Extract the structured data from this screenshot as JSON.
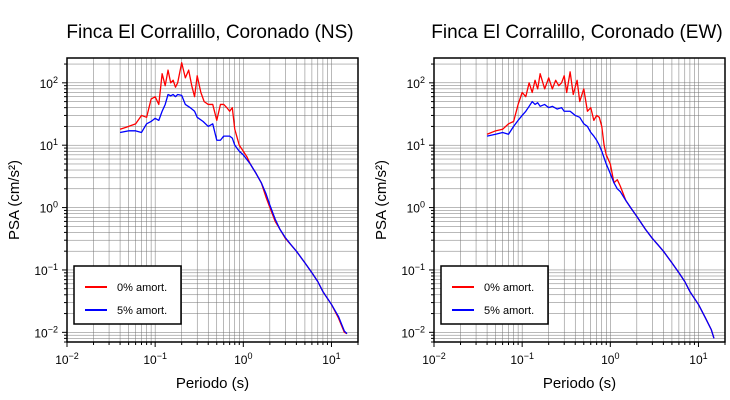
{
  "colors": {
    "series_0pct": "#ff0000",
    "series_5pct": "#0000ff",
    "grid": "#000000",
    "frame": "#000000"
  },
  "chart_data": [
    {
      "type": "line",
      "title": "Finca El Corralillo, Coronado (NS)",
      "xlabel": "Periodo (s)",
      "ylabel": "PSA (cm/s²)",
      "xscale": "log",
      "yscale": "log",
      "xlim": [
        0.01,
        20
      ],
      "ylim": [
        0.007,
        250
      ],
      "x_ticks": [
        0.01,
        0.1,
        1,
        10
      ],
      "x_tick_labels": [
        {
          "base": "10",
          "exp": "−2"
        },
        {
          "base": "10",
          "exp": "−1"
        },
        {
          "base": "10",
          "exp": "0"
        },
        {
          "base": "10",
          "exp": "1"
        }
      ],
      "y_ticks": [
        0.01,
        0.1,
        1,
        10,
        100
      ],
      "y_tick_labels": [
        {
          "base": "10",
          "exp": "−2"
        },
        {
          "base": "10",
          "exp": "−1"
        },
        {
          "base": "10",
          "exp": "0"
        },
        {
          "base": "10",
          "exp": "1"
        },
        {
          "base": "10",
          "exp": "2"
        }
      ],
      "grid": true,
      "legend_position": "bottom-left",
      "series": [
        {
          "name": "0% amort.",
          "color": "#ff0000",
          "points": [
            [
              0.04,
              18
            ],
            [
              0.05,
              20
            ],
            [
              0.06,
              22
            ],
            [
              0.07,
              30
            ],
            [
              0.08,
              28
            ],
            [
              0.09,
              55
            ],
            [
              0.1,
              60
            ],
            [
              0.11,
              45
            ],
            [
              0.12,
              140
            ],
            [
              0.13,
              90
            ],
            [
              0.14,
              160
            ],
            [
              0.15,
              100
            ],
            [
              0.16,
              110
            ],
            [
              0.17,
              85
            ],
            [
              0.18,
              100
            ],
            [
              0.2,
              210
            ],
            [
              0.22,
              120
            ],
            [
              0.24,
              160
            ],
            [
              0.26,
              90
            ],
            [
              0.28,
              60
            ],
            [
              0.3,
              130
            ],
            [
              0.33,
              70
            ],
            [
              0.36,
              50
            ],
            [
              0.4,
              45
            ],
            [
              0.45,
              45
            ],
            [
              0.5,
              25
            ],
            [
              0.55,
              45
            ],
            [
              0.6,
              45
            ],
            [
              0.65,
              40
            ],
            [
              0.7,
              35
            ],
            [
              0.75,
              40
            ],
            [
              0.8,
              18
            ],
            [
              0.9,
              10
            ],
            [
              1.0,
              8
            ],
            [
              1.1,
              6.5
            ],
            [
              1.2,
              5
            ],
            [
              1.4,
              3.5
            ],
            [
              1.6,
              2.5
            ],
            [
              1.8,
              1.5
            ],
            [
              2,
              1.0
            ],
            [
              2.3,
              0.6
            ],
            [
              2.6,
              0.45
            ],
            [
              3,
              0.32
            ],
            [
              3.5,
              0.25
            ],
            [
              4,
              0.2
            ],
            [
              5,
              0.13
            ],
            [
              6,
              0.09
            ],
            [
              7,
              0.065
            ],
            [
              8,
              0.045
            ],
            [
              10,
              0.028
            ],
            [
              12,
              0.017
            ],
            [
              14,
              0.01
            ],
            [
              15,
              0.0095
            ]
          ]
        },
        {
          "name": "5% amort.",
          "color": "#0000ff",
          "points": [
            [
              0.04,
              16
            ],
            [
              0.05,
              17
            ],
            [
              0.06,
              17
            ],
            [
              0.07,
              16
            ],
            [
              0.08,
              22
            ],
            [
              0.09,
              24
            ],
            [
              0.1,
              27
            ],
            [
              0.11,
              25
            ],
            [
              0.12,
              35
            ],
            [
              0.13,
              45
            ],
            [
              0.14,
              65
            ],
            [
              0.15,
              62
            ],
            [
              0.16,
              65
            ],
            [
              0.17,
              60
            ],
            [
              0.18,
              65
            ],
            [
              0.2,
              63
            ],
            [
              0.22,
              45
            ],
            [
              0.25,
              40
            ],
            [
              0.28,
              35
            ],
            [
              0.3,
              28
            ],
            [
              0.35,
              24
            ],
            [
              0.4,
              20
            ],
            [
              0.45,
              22
            ],
            [
              0.5,
              12
            ],
            [
              0.55,
              12
            ],
            [
              0.6,
              14
            ],
            [
              0.7,
              14
            ],
            [
              0.75,
              13
            ],
            [
              0.8,
              10
            ],
            [
              0.9,
              8
            ],
            [
              1.0,
              7
            ],
            [
              1.2,
              5
            ],
            [
              1.4,
              3.5
            ],
            [
              1.6,
              2.5
            ],
            [
              1.8,
              1.7
            ],
            [
              2,
              1.1
            ],
            [
              2.3,
              0.65
            ],
            [
              2.6,
              0.45
            ],
            [
              3,
              0.33
            ],
            [
              3.5,
              0.25
            ],
            [
              4,
              0.2
            ],
            [
              5,
              0.13
            ],
            [
              6,
              0.09
            ],
            [
              7,
              0.065
            ],
            [
              8,
              0.045
            ],
            [
              10,
              0.028
            ],
            [
              12,
              0.018
            ],
            [
              14,
              0.0105
            ],
            [
              15,
              0.0095
            ]
          ]
        }
      ]
    },
    {
      "type": "line",
      "title": "Finca El Corralillo, Coronado (EW)",
      "xlabel": "Periodo (s)",
      "ylabel": "PSA (cm/s²)",
      "xscale": "log",
      "yscale": "log",
      "xlim": [
        0.01,
        20
      ],
      "ylim": [
        0.007,
        250
      ],
      "x_ticks": [
        0.01,
        0.1,
        1,
        10
      ],
      "x_tick_labels": [
        {
          "base": "10",
          "exp": "−2"
        },
        {
          "base": "10",
          "exp": "−1"
        },
        {
          "base": "10",
          "exp": "0"
        },
        {
          "base": "10",
          "exp": "1"
        }
      ],
      "y_ticks": [
        0.01,
        0.1,
        1,
        10,
        100
      ],
      "y_tick_labels": [
        {
          "base": "10",
          "exp": "−2"
        },
        {
          "base": "10",
          "exp": "−1"
        },
        {
          "base": "10",
          "exp": "0"
        },
        {
          "base": "10",
          "exp": "1"
        },
        {
          "base": "10",
          "exp": "2"
        }
      ],
      "grid": true,
      "legend_position": "bottom-left",
      "series": [
        {
          "name": "0% amort.",
          "color": "#ff0000",
          "points": [
            [
              0.04,
              15
            ],
            [
              0.05,
              17
            ],
            [
              0.06,
              18
            ],
            [
              0.07,
              22
            ],
            [
              0.08,
              24
            ],
            [
              0.09,
              45
            ],
            [
              0.1,
              70
            ],
            [
              0.11,
              60
            ],
            [
              0.12,
              100
            ],
            [
              0.13,
              70
            ],
            [
              0.14,
              110
            ],
            [
              0.15,
              80
            ],
            [
              0.16,
              140
            ],
            [
              0.18,
              80
            ],
            [
              0.2,
              120
            ],
            [
              0.22,
              80
            ],
            [
              0.24,
              110
            ],
            [
              0.26,
              90
            ],
            [
              0.28,
              100
            ],
            [
              0.3,
              130
            ],
            [
              0.32,
              70
            ],
            [
              0.35,
              150
            ],
            [
              0.38,
              65
            ],
            [
              0.42,
              110
            ],
            [
              0.45,
              50
            ],
            [
              0.5,
              80
            ],
            [
              0.55,
              35
            ],
            [
              0.6,
              40
            ],
            [
              0.65,
              25
            ],
            [
              0.7,
              30
            ],
            [
              0.75,
              28
            ],
            [
              0.8,
              20
            ],
            [
              0.85,
              10
            ],
            [
              0.9,
              7
            ],
            [
              1.0,
              5
            ],
            [
              1.1,
              2.5
            ],
            [
              1.2,
              2.8
            ],
            [
              1.3,
              2.2
            ],
            [
              1.5,
              1.3
            ],
            [
              1.7,
              1.0
            ],
            [
              2,
              0.72
            ],
            [
              2.5,
              0.45
            ],
            [
              3,
              0.32
            ],
            [
              3.5,
              0.25
            ],
            [
              4,
              0.2
            ],
            [
              5,
              0.13
            ],
            [
              6,
              0.09
            ],
            [
              7,
              0.065
            ],
            [
              8,
              0.045
            ],
            [
              10,
              0.028
            ],
            [
              12,
              0.017
            ],
            [
              14,
              0.011
            ],
            [
              15,
              0.008
            ]
          ]
        },
        {
          "name": "5% amort.",
          "color": "#0000ff",
          "points": [
            [
              0.04,
              14
            ],
            [
              0.05,
              15
            ],
            [
              0.06,
              16
            ],
            [
              0.07,
              15
            ],
            [
              0.08,
              20
            ],
            [
              0.09,
              25
            ],
            [
              0.1,
              30
            ],
            [
              0.11,
              35
            ],
            [
              0.12,
              42
            ],
            [
              0.13,
              50
            ],
            [
              0.14,
              45
            ],
            [
              0.15,
              48
            ],
            [
              0.16,
              42
            ],
            [
              0.18,
              45
            ],
            [
              0.2,
              40
            ],
            [
              0.22,
              42
            ],
            [
              0.25,
              38
            ],
            [
              0.28,
              40
            ],
            [
              0.3,
              35
            ],
            [
              0.35,
              35
            ],
            [
              0.4,
              30
            ],
            [
              0.45,
              28
            ],
            [
              0.5,
              22
            ],
            [
              0.55,
              20
            ],
            [
              0.6,
              16
            ],
            [
              0.65,
              14
            ],
            [
              0.7,
              12
            ],
            [
              0.75,
              10
            ],
            [
              0.8,
              8
            ],
            [
              0.9,
              5
            ],
            [
              1.0,
              3.5
            ],
            [
              1.1,
              2.5
            ],
            [
              1.2,
              2.0
            ],
            [
              1.3,
              1.8
            ],
            [
              1.5,
              1.3
            ],
            [
              1.7,
              1.0
            ],
            [
              2,
              0.72
            ],
            [
              2.5,
              0.45
            ],
            [
              3,
              0.32
            ],
            [
              3.5,
              0.25
            ],
            [
              4,
              0.2
            ],
            [
              5,
              0.13
            ],
            [
              6,
              0.09
            ],
            [
              7,
              0.065
            ],
            [
              8,
              0.045
            ],
            [
              10,
              0.028
            ],
            [
              12,
              0.017
            ],
            [
              14,
              0.011
            ],
            [
              15,
              0.008
            ]
          ]
        }
      ]
    }
  ]
}
